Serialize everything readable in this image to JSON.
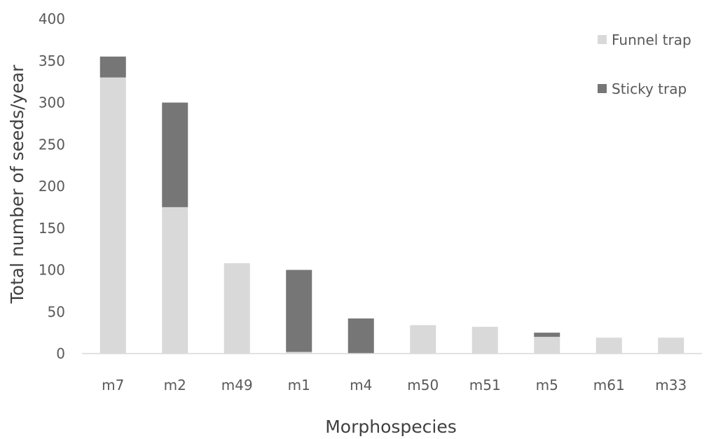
{
  "chart_data": {
    "type": "bar",
    "stacked": true,
    "title": "",
    "xlabel": "Morphospecies",
    "ylabel": "Total number of seeds/year",
    "ylim": [
      0,
      400
    ],
    "yticks": [
      0,
      50,
      100,
      150,
      200,
      250,
      300,
      350,
      400
    ],
    "grid": false,
    "legend_position": "top-right",
    "categories": [
      "m7",
      "m2",
      "m49",
      "m1",
      "m4",
      "m50",
      "m51",
      "m5",
      "m61",
      "m33"
    ],
    "series": [
      {
        "name": "Funnel trap",
        "color": "#d9d9d9",
        "values": [
          330,
          175,
          108,
          2,
          0,
          34,
          32,
          20,
          19,
          19
        ]
      },
      {
        "name": "Sticky trap",
        "color": "#767676",
        "values": [
          25,
          125,
          0,
          98,
          42,
          0,
          0,
          5,
          0,
          0
        ]
      }
    ]
  }
}
